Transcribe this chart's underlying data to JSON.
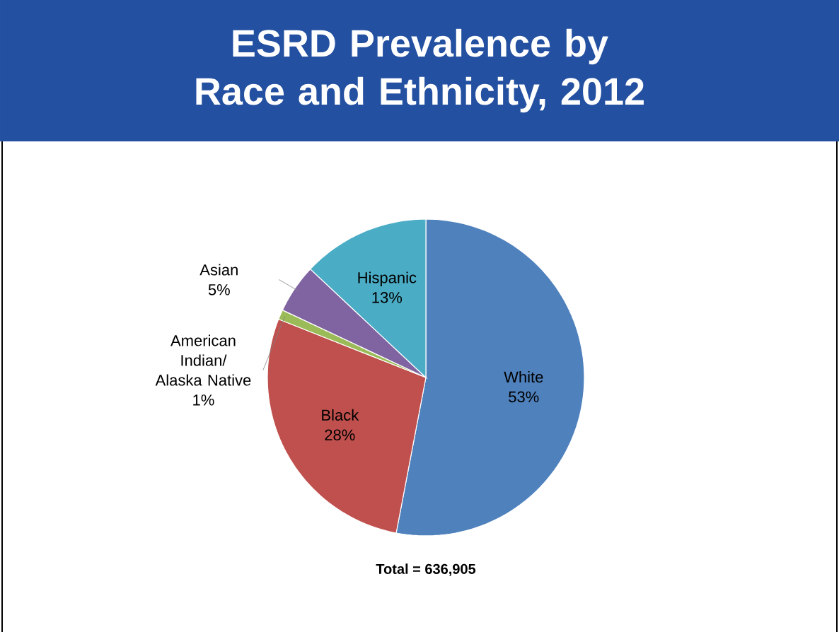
{
  "chart_data": {
    "type": "pie",
    "title": "ESRD Prevalence by Race and Ethnicity, 2012",
    "categories": [
      "White",
      "Black",
      "American Indian/ Alaska Native",
      "Asian",
      "Hispanic"
    ],
    "values": [
      53,
      28,
      1,
      5,
      13
    ],
    "colors": [
      "#4f81bd",
      "#c0504d",
      "#9bbb59",
      "#8064a2",
      "#4bacc6"
    ],
    "value_labels": [
      "53%",
      "28%",
      "1%",
      "5%",
      "13%"
    ],
    "annotations": [
      "Total = 636,905"
    ]
  }
}
